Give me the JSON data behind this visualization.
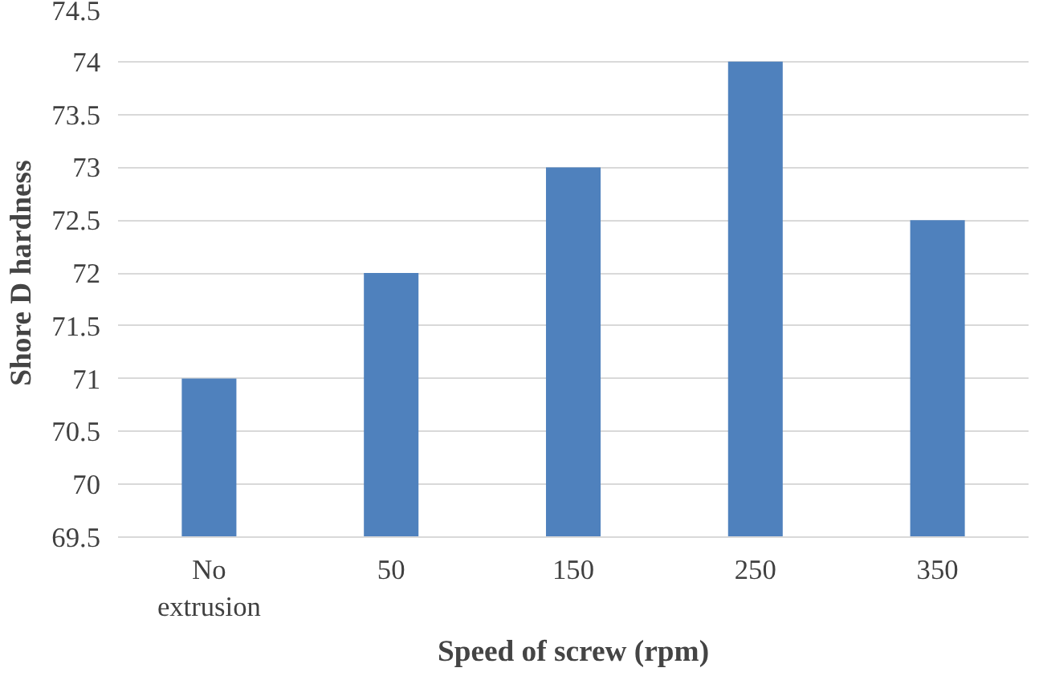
{
  "chart_data": {
    "type": "bar",
    "xlabel": "Speed of screw (rpm)",
    "ylabel": "Shore D hardness",
    "categories": [
      "No extrusion",
      "50",
      "150",
      "250",
      "350"
    ],
    "values": [
      71,
      72,
      73,
      74,
      72.5
    ],
    "color": "#4f81bd",
    "ylim": [
      69.5,
      74.5
    ],
    "yticks": [
      69.5,
      70,
      70.5,
      71,
      71.5,
      72,
      72.5,
      73,
      73.5,
      74,
      74.5
    ],
    "grid": "y"
  }
}
